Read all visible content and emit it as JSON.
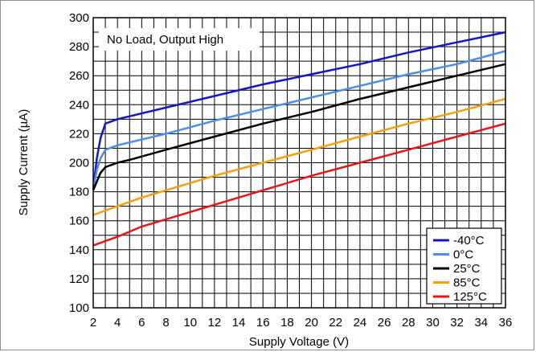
{
  "chart_data": {
    "type": "line",
    "xlabel": "Supply Voltage (V)",
    "ylabel": "Supply Current (µA)",
    "annotation": "No Load, Output High",
    "xlim": [
      2,
      36
    ],
    "ylim": [
      100,
      300
    ],
    "xticks": [
      2,
      4,
      6,
      8,
      10,
      12,
      14,
      16,
      18,
      20,
      22,
      24,
      26,
      28,
      30,
      32,
      34,
      36
    ],
    "yticks": [
      100,
      120,
      140,
      160,
      180,
      200,
      220,
      240,
      260,
      280,
      300
    ],
    "grid": true,
    "legend_position": "bottom-right",
    "series": [
      {
        "name": "-40°C",
        "color": "#1414c8",
        "x": [
          2,
          2.3,
          2.6,
          3,
          4,
          5,
          8,
          12,
          16,
          20,
          24,
          28,
          32,
          36
        ],
        "y": [
          182,
          203,
          217,
          227,
          230,
          232,
          238,
          246,
          254,
          261,
          268,
          276,
          283,
          290
        ]
      },
      {
        "name": "0°C",
        "color": "#4a8ee8",
        "x": [
          2,
          2.3,
          2.6,
          3,
          4,
          5,
          8,
          12,
          16,
          20,
          24,
          28,
          32,
          36
        ],
        "y": [
          182,
          195,
          203,
          209,
          212,
          214,
          220,
          229,
          237,
          245,
          253,
          261,
          268,
          277
        ]
      },
      {
        "name": "25°C",
        "color": "#000000",
        "x": [
          2,
          2.3,
          2.6,
          3,
          4,
          5,
          8,
          12,
          16,
          20,
          24,
          28,
          32,
          36
        ],
        "y": [
          181,
          187,
          193,
          197,
          200,
          202,
          209,
          218,
          227,
          235,
          244,
          252,
          260,
          268
        ]
      },
      {
        "name": "85°C",
        "color": "#f5a00a",
        "x": [
          2,
          4,
          6,
          8,
          12,
          16,
          20,
          24,
          28,
          32,
          36
        ],
        "y": [
          164,
          170,
          176,
          181,
          191,
          200,
          209,
          218,
          227,
          235,
          244
        ]
      },
      {
        "name": "125°C",
        "color": "#e81414",
        "x": [
          2,
          4,
          6,
          8,
          12,
          16,
          20,
          24,
          28,
          32,
          36
        ],
        "y": [
          143,
          149,
          156,
          161,
          171,
          181,
          191,
          200,
          209,
          218,
          227
        ]
      }
    ]
  }
}
